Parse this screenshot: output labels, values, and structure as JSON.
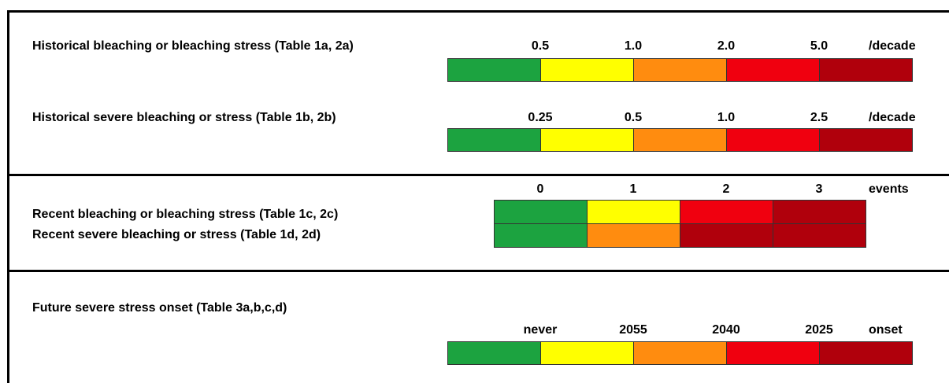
{
  "colors": {
    "green": "#1CA340",
    "yellow": "#FFFF00",
    "orange": "#FF8C0F",
    "red": "#F0000F",
    "darkred": "#B0000C"
  },
  "section1": {
    "row1": {
      "label": "Historical bleaching or bleaching stress (Table 1a, 2a)",
      "ticks": [
        "0.5",
        "1.0",
        "2.0",
        "5.0"
      ],
      "unit": "/decade",
      "cells": [
        "green",
        "yellow",
        "orange",
        "red",
        "darkred"
      ]
    },
    "row2": {
      "label": "Historical severe bleaching or stress (Table 1b, 2b)",
      "ticks": [
        "0.25",
        "0.5",
        "1.0",
        "2.5"
      ],
      "unit": "/decade",
      "cells": [
        "green",
        "yellow",
        "orange",
        "red",
        "darkred"
      ]
    }
  },
  "section2": {
    "ticks": [
      "0",
      "1",
      "2",
      "3"
    ],
    "unit": "events",
    "row1": {
      "label": "Recent bleaching or bleaching stress (Table 1c, 2c)",
      "cells": [
        "green",
        "yellow",
        "red",
        "darkred"
      ]
    },
    "row2": {
      "label": "Recent severe bleaching or stress (Table 1d, 2d)",
      "cells": [
        "green",
        "orange",
        "darkred",
        "darkred"
      ]
    }
  },
  "section3": {
    "label": "Future severe stress onset (Table 3a,b,c,d)",
    "ticks": [
      "never",
      "2055",
      "2040",
      "2025"
    ],
    "unit": "onset",
    "cells": [
      "green",
      "yellow",
      "orange",
      "red",
      "darkred"
    ]
  }
}
